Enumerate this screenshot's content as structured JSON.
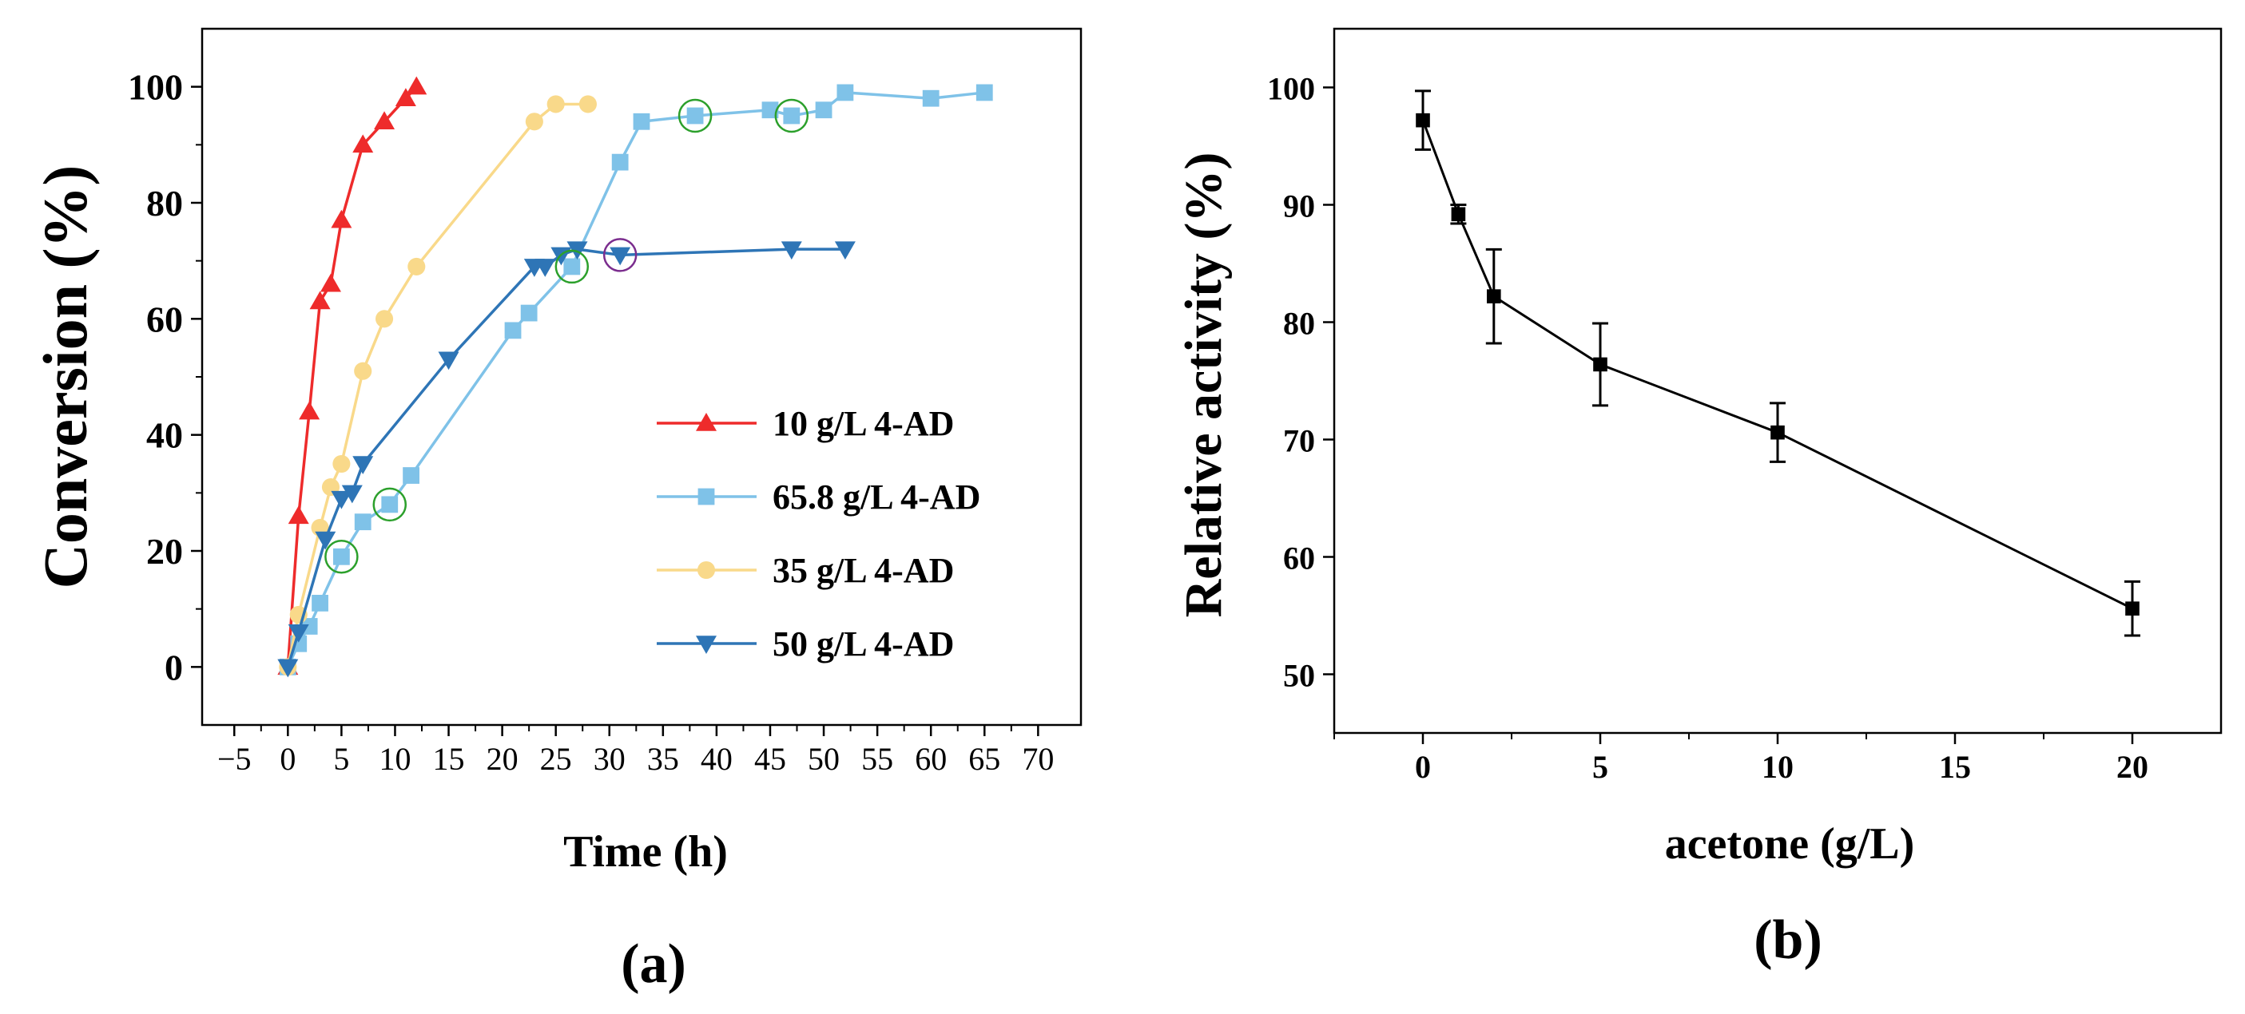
{
  "chart_data": [
    {
      "type": "line",
      "panel_label": "(a)",
      "xlabel": "Time (h)",
      "ylabel": "Conversion (%)",
      "xlim": [
        -8,
        74
      ],
      "ylim": [
        -10,
        110
      ],
      "xticks": [
        -5,
        0,
        5,
        10,
        15,
        20,
        25,
        30,
        35,
        40,
        45,
        50,
        55,
        60,
        65,
        70
      ],
      "yticks": [
        0,
        20,
        40,
        60,
        80,
        100
      ],
      "legend_position": "bottom-right",
      "series": [
        {
          "name": "10 g/L 4-AD",
          "color": "#ee2b2b",
          "marker": "triangle-up",
          "points": [
            [
              0,
              0
            ],
            [
              1,
              26
            ],
            [
              2,
              44
            ],
            [
              3,
              63
            ],
            [
              4,
              66
            ],
            [
              5,
              77
            ],
            [
              7,
              90
            ],
            [
              9,
              94
            ],
            [
              11,
              98
            ],
            [
              12,
              100
            ]
          ]
        },
        {
          "name": "65.8 g/L 4-AD",
          "color": "#7fc2e8",
          "marker": "square",
          "points": [
            [
              0,
              0
            ],
            [
              1,
              4
            ],
            [
              2,
              7
            ],
            [
              3,
              11
            ],
            [
              5,
              19
            ],
            [
              7,
              25
            ],
            [
              9.5,
              28
            ],
            [
              11.5,
              33
            ],
            [
              21,
              58
            ],
            [
              22.5,
              61
            ],
            [
              26.5,
              69
            ],
            [
              31,
              87
            ],
            [
              33,
              94
            ],
            [
              38,
              95
            ],
            [
              45,
              96
            ],
            [
              47,
              95
            ],
            [
              50,
              96
            ],
            [
              52,
              99
            ],
            [
              60,
              98
            ],
            [
              65,
              99
            ]
          ]
        },
        {
          "name": "35 g/L 4-AD",
          "color": "#f9d98a",
          "marker": "circle",
          "points": [
            [
              0,
              0
            ],
            [
              1,
              9
            ],
            [
              3,
              24
            ],
            [
              4,
              31
            ],
            [
              5,
              35
            ],
            [
              7,
              51
            ],
            [
              9,
              60
            ],
            [
              12,
              69
            ],
            [
              23,
              94
            ],
            [
              25,
              97
            ],
            [
              28,
              97
            ]
          ]
        },
        {
          "name": "50 g/L 4-AD",
          "color": "#2e75b6",
          "marker": "triangle-down",
          "points": [
            [
              0,
              0
            ],
            [
              1,
              6
            ],
            [
              3.5,
              22
            ],
            [
              5,
              29
            ],
            [
              6,
              30
            ],
            [
              7,
              35
            ],
            [
              15,
              53
            ],
            [
              23,
              69
            ],
            [
              24,
              69
            ],
            [
              25.5,
              71
            ],
            [
              27,
              72
            ],
            [
              31,
              71
            ],
            [
              47,
              72
            ],
            [
              52,
              72
            ]
          ]
        }
      ],
      "highlight_circles": [
        {
          "x": 5,
          "y": 19,
          "color": "#2ca02c"
        },
        {
          "x": 9.5,
          "y": 28,
          "color": "#2ca02c"
        },
        {
          "x": 26.5,
          "y": 69,
          "color": "#2ca02c"
        },
        {
          "x": 31,
          "y": 71,
          "color": "#7b2d8e"
        },
        {
          "x": 38,
          "y": 95,
          "color": "#2ca02c"
        },
        {
          "x": 47,
          "y": 95,
          "color": "#2ca02c"
        }
      ]
    },
    {
      "type": "line",
      "panel_label": "(b)",
      "xlabel": "acetone (g/L)",
      "ylabel": "Relative activity (%)",
      "xlim": [
        -2.5,
        22.5
      ],
      "ylim": [
        45,
        105
      ],
      "xticks": [
        0,
        5,
        10,
        15,
        20
      ],
      "yticks": [
        50,
        60,
        70,
        80,
        90,
        100
      ],
      "series": [
        {
          "name": "Relative activity",
          "color": "#000000",
          "marker": "square",
          "points": [
            [
              0,
              97.2
            ],
            [
              1,
              89.2
            ],
            [
              2,
              82.2
            ],
            [
              5,
              76.4
            ],
            [
              10,
              70.6
            ],
            [
              20,
              55.6
            ]
          ],
          "errors": [
            2.5,
            0.8,
            4.0,
            3.5,
            2.5,
            2.3
          ]
        }
      ]
    }
  ]
}
